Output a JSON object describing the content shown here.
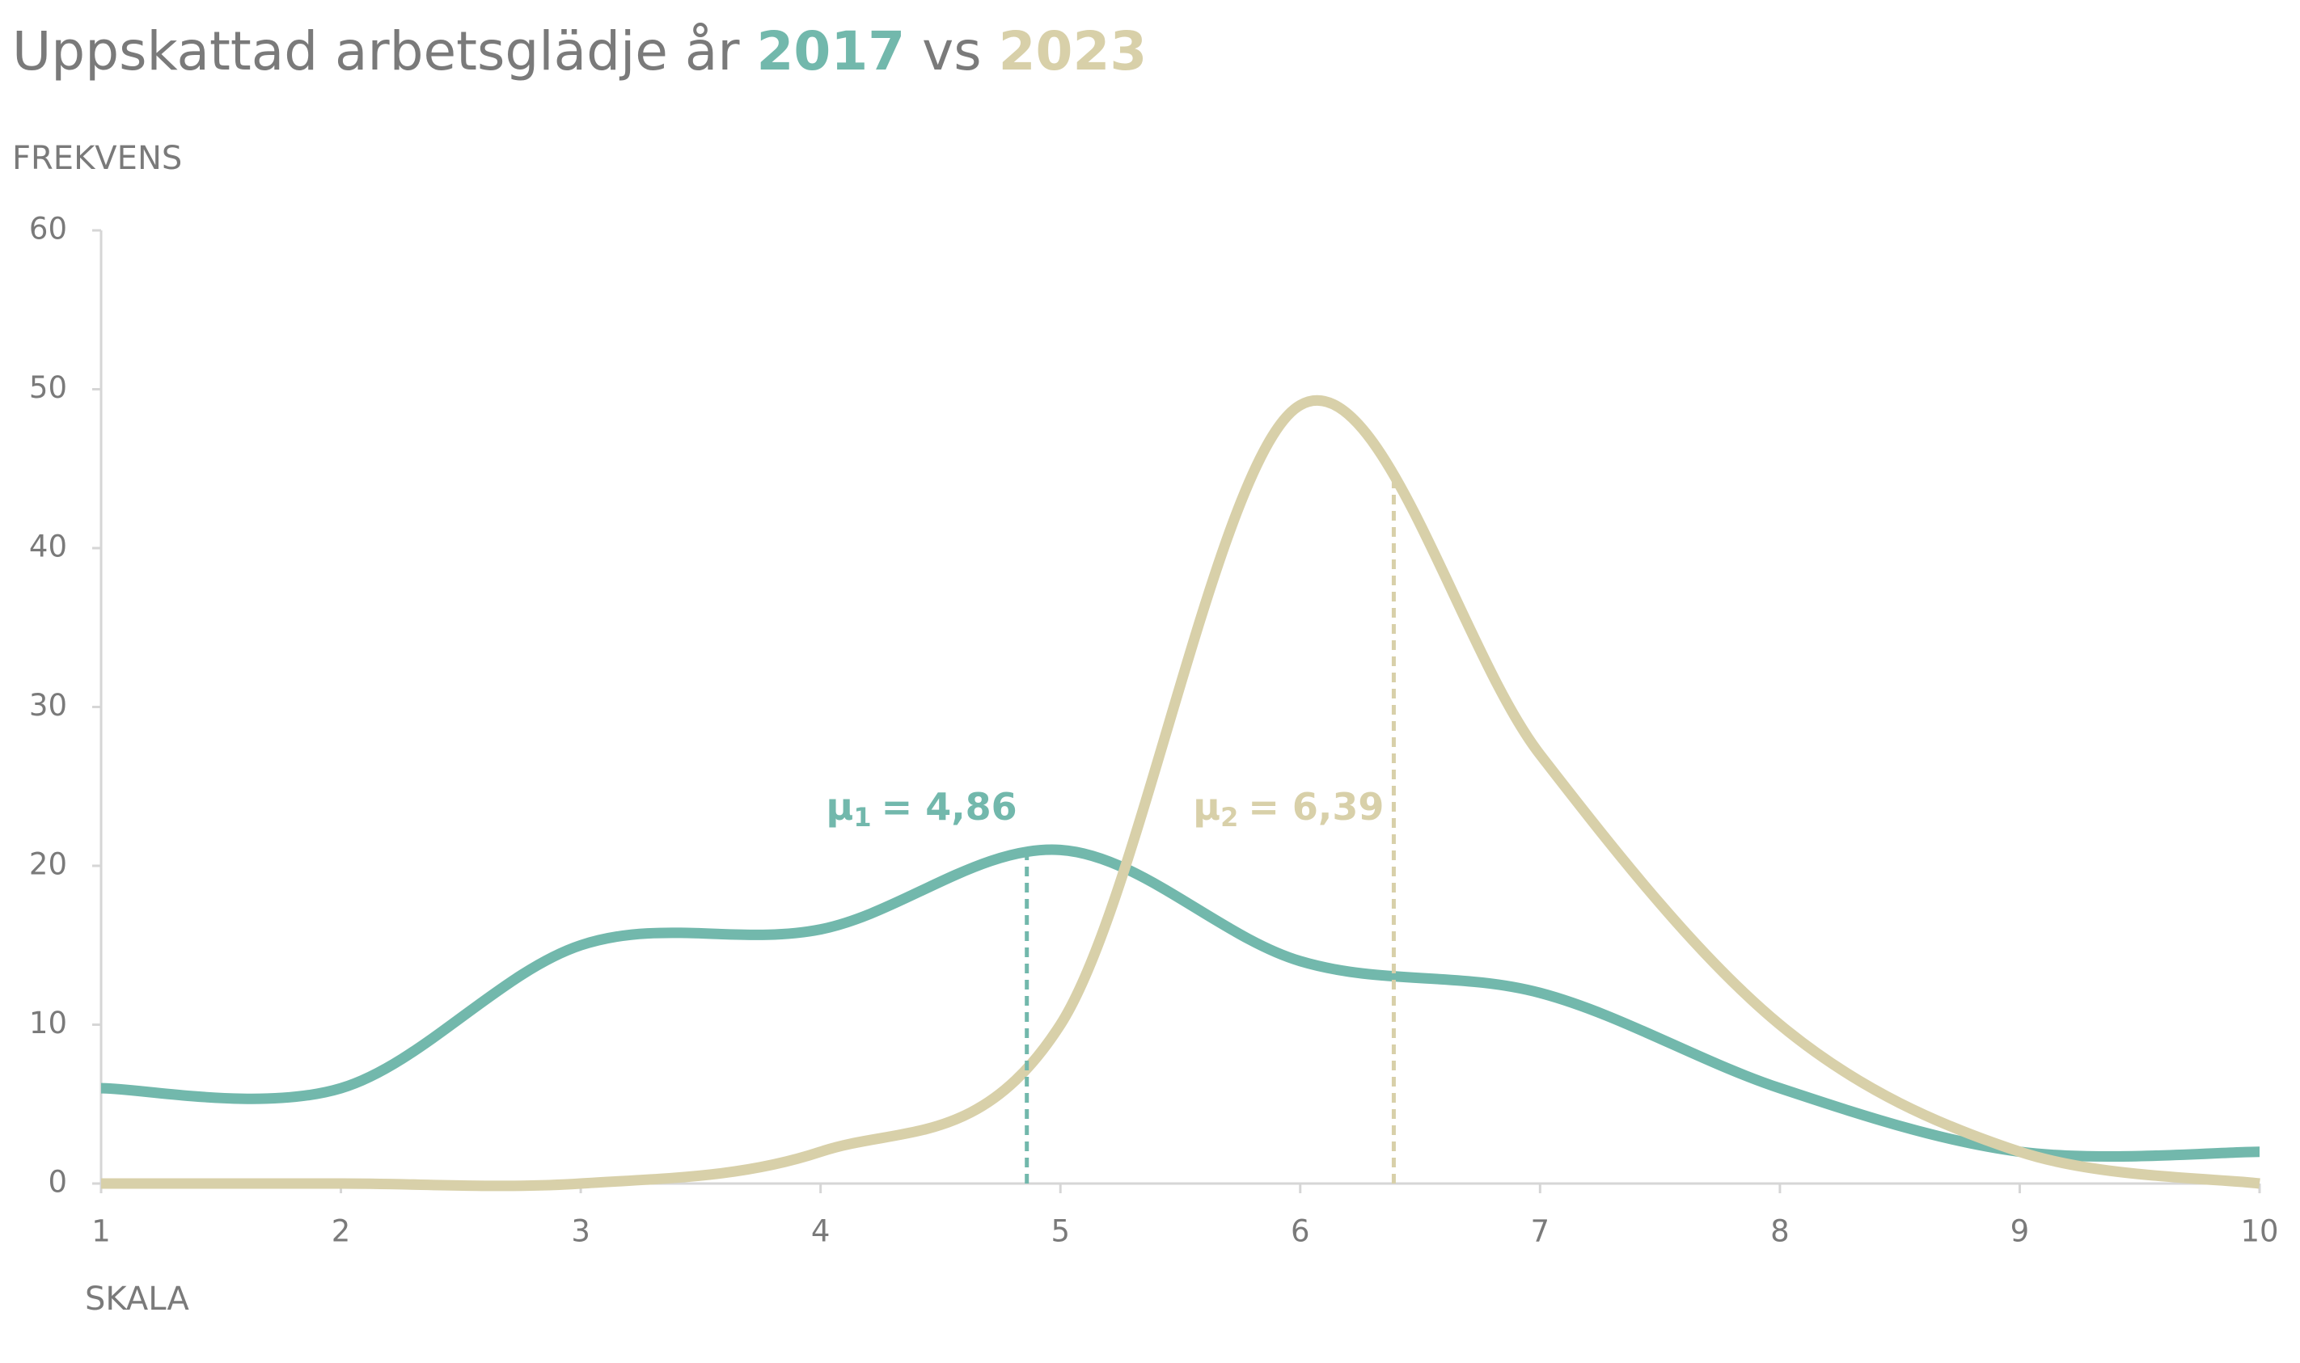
{
  "chart_data": {
    "type": "line",
    "title": "Uppskattad arbetsglädje år",
    "title_join": "vs",
    "ylabel": "FREKVENS",
    "xlabel": "SKALA",
    "x": [
      1,
      2,
      3,
      4,
      5,
      6,
      7,
      8,
      9,
      10
    ],
    "series": [
      {
        "name": "2017",
        "color": "#72b8ac",
        "values": [
          6,
          6,
          15,
          16,
          21,
          14,
          12,
          6,
          2,
          2
        ],
        "mean": 4.86,
        "mean_label": {
          "symbol": "μ",
          "index": "1",
          "text": "= 4,86"
        }
      },
      {
        "name": "2023",
        "color": "#d8d0a9",
        "values": [
          0,
          0,
          0,
          2,
          10,
          49,
          27,
          10,
          2,
          0
        ],
        "mean": 6.39,
        "mean_label": {
          "symbol": "μ",
          "index": "2",
          "text": "= 6,39"
        }
      }
    ],
    "xlim": [
      1,
      10
    ],
    "xticks": [
      1,
      2,
      3,
      4,
      5,
      6,
      7,
      8,
      9,
      10
    ],
    "ylim": [
      0,
      60
    ],
    "yticks": [
      0,
      10,
      20,
      30,
      40,
      50,
      60
    ],
    "grid": false,
    "smooth": true
  }
}
